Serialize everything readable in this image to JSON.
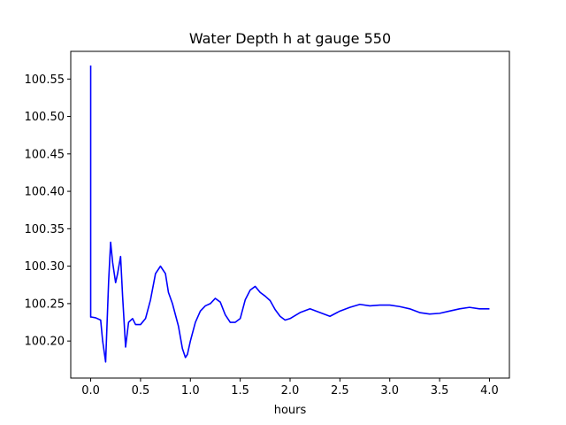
{
  "chart_data": {
    "type": "line",
    "title": "Water Depth h at gauge 550",
    "xlabel": "hours",
    "ylabel": "",
    "xlim": [
      -0.2,
      4.2
    ],
    "ylim": [
      100.1505,
      100.587
    ],
    "xticks": [
      0.0,
      0.5,
      1.0,
      1.5,
      2.0,
      2.5,
      3.0,
      3.5,
      4.0
    ],
    "xtick_labels": [
      "0.0",
      "0.5",
      "1.0",
      "1.5",
      "2.0",
      "2.5",
      "3.0",
      "3.5",
      "4.0"
    ],
    "yticks": [
      100.2,
      100.25,
      100.3,
      100.35,
      100.4,
      100.45,
      100.5,
      100.55
    ],
    "ytick_labels": [
      "100.20",
      "100.25",
      "100.30",
      "100.35",
      "100.40",
      "100.45",
      "100.50",
      "100.55"
    ],
    "grid": false,
    "series": [
      {
        "color": "#0000ff",
        "x": [
          0.0,
          0.0,
          0.01,
          0.05,
          0.1,
          0.12,
          0.15,
          0.18,
          0.2,
          0.22,
          0.25,
          0.27,
          0.3,
          0.32,
          0.35,
          0.38,
          0.42,
          0.45,
          0.5,
          0.55,
          0.6,
          0.65,
          0.7,
          0.75,
          0.78,
          0.82,
          0.88,
          0.92,
          0.95,
          0.97,
          1.0,
          1.05,
          1.1,
          1.15,
          1.2,
          1.25,
          1.3,
          1.35,
          1.4,
          1.45,
          1.5,
          1.55,
          1.6,
          1.65,
          1.7,
          1.75,
          1.8,
          1.85,
          1.9,
          1.95,
          2.0,
          2.1,
          2.2,
          2.3,
          2.4,
          2.5,
          2.6,
          2.7,
          2.8,
          2.9,
          3.0,
          3.1,
          3.2,
          3.3,
          3.4,
          3.5,
          3.6,
          3.7,
          3.8,
          3.9,
          4.0
        ],
        "y": [
          100.568,
          100.232,
          100.232,
          100.231,
          100.228,
          100.2,
          100.172,
          100.28,
          100.332,
          100.305,
          100.278,
          100.29,
          100.313,
          100.26,
          100.192,
          100.225,
          100.23,
          100.222,
          100.222,
          100.23,
          100.255,
          100.29,
          100.3,
          100.29,
          100.265,
          100.25,
          100.22,
          100.19,
          100.178,
          100.182,
          100.2,
          100.225,
          100.24,
          100.247,
          100.25,
          100.257,
          100.252,
          100.235,
          100.225,
          100.225,
          100.23,
          100.255,
          100.268,
          100.273,
          100.265,
          100.26,
          100.254,
          100.242,
          100.233,
          100.228,
          100.23,
          100.238,
          100.243,
          100.238,
          100.233,
          100.24,
          100.245,
          100.249,
          100.247,
          100.248,
          100.248,
          100.246,
          100.243,
          100.238,
          100.236,
          100.237,
          100.24,
          100.243,
          100.245,
          100.243,
          100.243
        ]
      }
    ]
  }
}
